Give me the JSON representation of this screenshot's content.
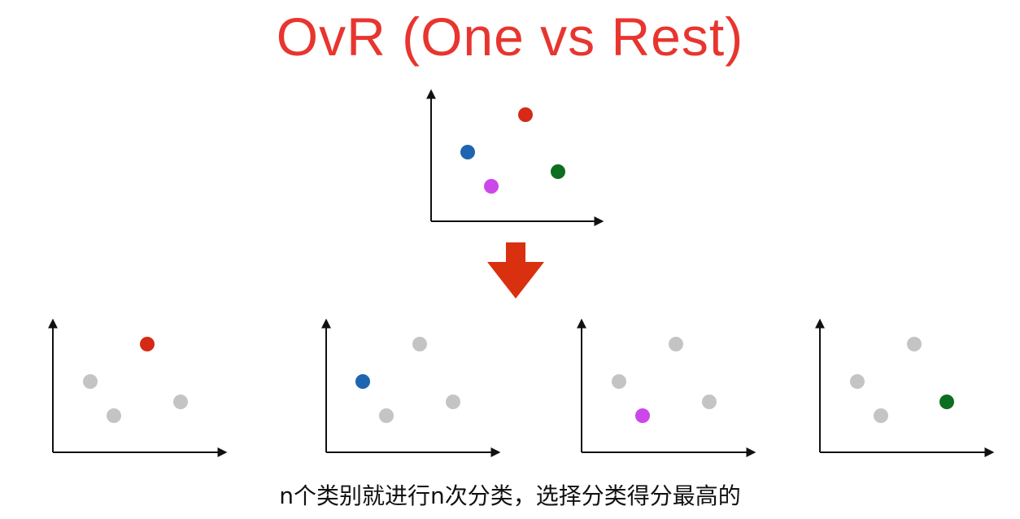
{
  "title": "OvR (One vs Rest)",
  "caption": "n个类别就进行n次分类，选择分类得分最高的",
  "colors": {
    "title": "#e8352f",
    "red": "#d42a16",
    "blue": "#1f64b0",
    "magenta": "#cc47e8",
    "green": "#0c6e1f",
    "gray": "#c4c4c4",
    "arrow": "#d9300f",
    "axis": "#111111"
  },
  "classes": [
    {
      "name": "red",
      "color_key": "red"
    },
    {
      "name": "blue",
      "color_key": "blue"
    },
    {
      "name": "magenta",
      "color_key": "magenta"
    },
    {
      "name": "green",
      "color_key": "green"
    }
  ],
  "arrow": {
    "icon": "down-arrow-icon"
  },
  "panels": [
    {
      "name": "source-plot",
      "highlight": "all"
    },
    {
      "name": "plot-red-vs-rest",
      "highlight": "red"
    },
    {
      "name": "plot-blue-vs-rest",
      "highlight": "blue"
    },
    {
      "name": "plot-magenta-vs-rest",
      "highlight": "magenta"
    },
    {
      "name": "plot-green-vs-rest",
      "highlight": "green"
    }
  ]
}
